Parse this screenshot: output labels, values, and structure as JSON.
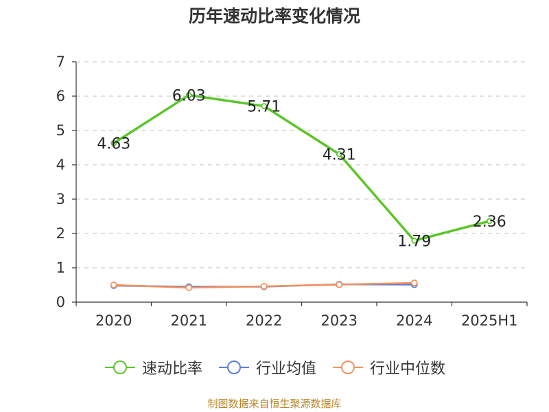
{
  "chart_data": {
    "type": "line",
    "title": "历年速动比率变化情况",
    "categories": [
      "2020",
      "2021",
      "2022",
      "2023",
      "2024",
      "2025H1"
    ],
    "ylim": [
      0,
      7
    ],
    "yticks": [
      "0",
      "1",
      "2",
      "3",
      "4",
      "5",
      "6",
      "7"
    ],
    "grid": true,
    "legend_position": "bottom",
    "series": [
      {
        "name": "速动比率",
        "color": "#5cc52b",
        "values": [
          4.63,
          6.03,
          5.71,
          4.31,
          1.79,
          2.36
        ],
        "labels": [
          "4.63",
          "6.03",
          "5.71",
          "4.31",
          "1.79",
          "2.36"
        ]
      },
      {
        "name": "行业均值",
        "color": "#5b7fd6",
        "values": [
          0.48,
          0.45,
          0.45,
          0.52,
          0.51,
          null
        ]
      },
      {
        "name": "行业中位数",
        "color": "#f4915e",
        "values": [
          0.5,
          0.42,
          0.46,
          0.51,
          0.56,
          null
        ]
      }
    ]
  },
  "source_note": "制图数据来自恒生聚源数据库"
}
